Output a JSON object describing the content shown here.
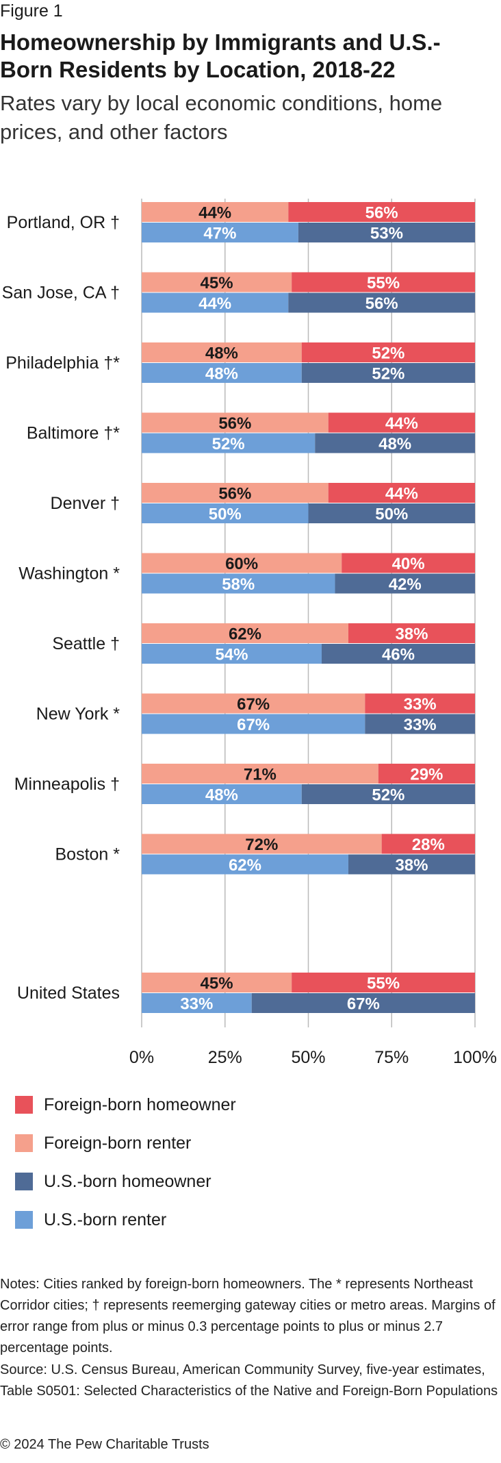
{
  "figure_label": "Figure 1",
  "chart_data": {
    "type": "bar",
    "title": "Homeownership by Immigrants and U.S.-Born Residents by Location, 2018-22",
    "subtitle": "Rates vary by local economic conditions, home prices, and other factors",
    "orientation": "horizontal",
    "stacked": "100%",
    "xlim": [
      0,
      100
    ],
    "x_ticks": [
      "0%",
      "25%",
      "50%",
      "75%",
      "100%"
    ],
    "categories": [
      "Portland, OR †",
      "San Jose, CA †",
      "Philadelphia †*",
      "Baltimore †*",
      "Denver †",
      "Washington *",
      "Seattle †",
      "New York *",
      "Minneapolis †",
      "Boston *",
      "United States"
    ],
    "series": [
      {
        "name": "Foreign-born renter",
        "group": "foreign",
        "values": [
          44,
          45,
          48,
          56,
          56,
          60,
          62,
          67,
          71,
          72,
          45
        ]
      },
      {
        "name": "Foreign-born homeowner",
        "group": "foreign",
        "values": [
          56,
          55,
          52,
          44,
          44,
          40,
          38,
          33,
          29,
          28,
          55
        ]
      },
      {
        "name": "U.S.-born renter",
        "group": "us",
        "values": [
          47,
          44,
          48,
          52,
          50,
          58,
          54,
          67,
          48,
          62,
          33
        ]
      },
      {
        "name": "U.S.-born homeowner",
        "group": "us",
        "values": [
          53,
          56,
          52,
          48,
          50,
          42,
          46,
          33,
          52,
          38,
          67
        ]
      }
    ],
    "colors": {
      "Foreign-born homeowner": "#e8525a",
      "Foreign-born renter": "#f5a08c",
      "U.S.-born homeowner": "#4f6b96",
      "U.S.-born renter": "#6d9fd8"
    },
    "grid": true,
    "legend_position": "bottom"
  },
  "legend": [
    {
      "label": "Foreign-born homeowner",
      "color": "#e8525a"
    },
    {
      "label": "Foreign-born renter",
      "color": "#f5a08c"
    },
    {
      "label": "U.S.-born homeowner",
      "color": "#4f6b96"
    },
    {
      "label": "U.S.-born renter",
      "color": "#6d9fd8"
    }
  ],
  "notes": "Notes: Cities ranked by foreign-born homeowners. The * represents Northeast Corridor cities; † represents reemerging gateway cities or metro areas. Margins of error range from plus or minus 0.3 percentage points to plus or minus 2.7 percentage points.",
  "source": "Source: U.S. Census Bureau, American Community Survey, five-year estimates, Table S0501: Selected Characteristics of the Native and Foreign-Born Populations",
  "copyright": "© 2024 The Pew Charitable Trusts"
}
